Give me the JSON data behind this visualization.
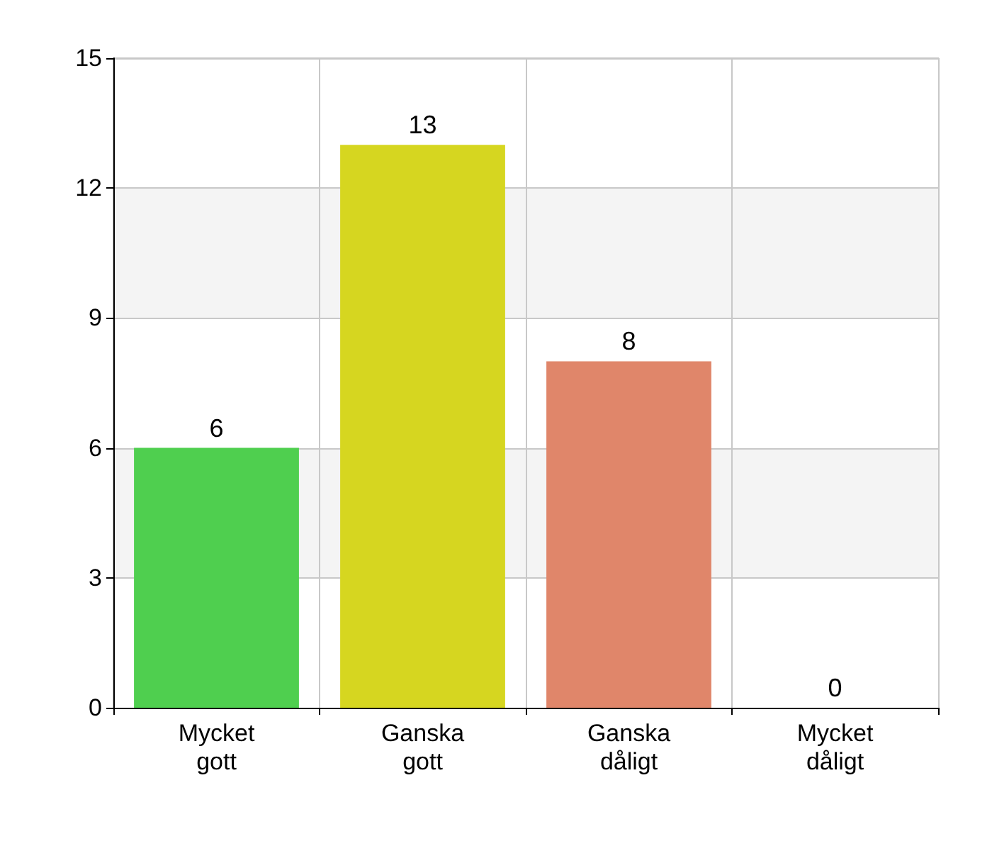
{
  "chart_data": {
    "type": "bar",
    "categories": [
      "Mycket\ngott",
      "Ganska\ngott",
      "Ganska\ndåligt",
      "Mycket\ndåligt"
    ],
    "values": [
      6,
      13,
      8,
      0
    ],
    "colors": [
      "#4fcf4f",
      "#d6d620",
      "#e0866a",
      "#8b4a3a"
    ],
    "ylim": [
      0,
      15
    ],
    "yticks": [
      0,
      3,
      6,
      9,
      12,
      15
    ],
    "grid": true,
    "data_labels": true
  }
}
